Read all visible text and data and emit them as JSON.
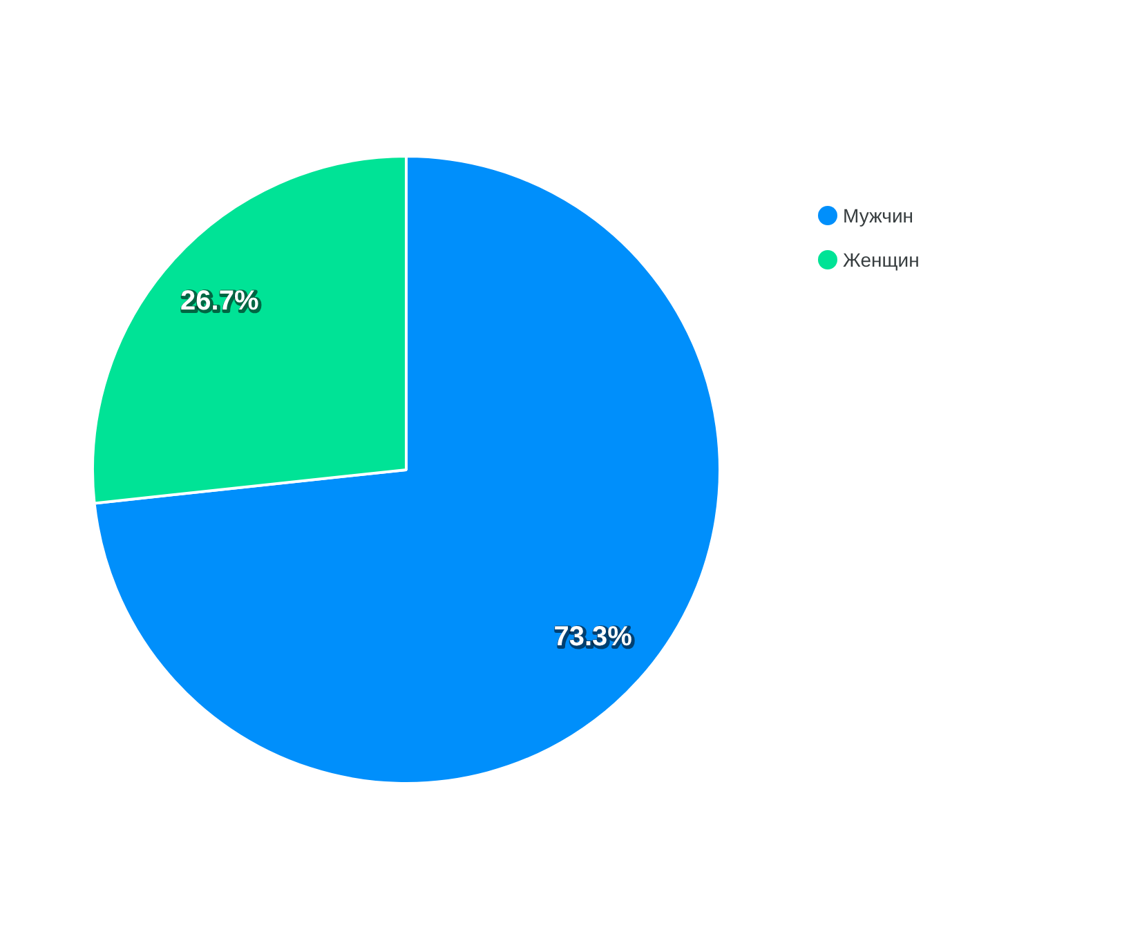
{
  "chart_data": {
    "type": "pie",
    "categories": [
      "Мужчин",
      "Женщин"
    ],
    "values": [
      73.3,
      26.7
    ],
    "colors": [
      "#008ffb",
      "#00e396"
    ],
    "legend": "top right",
    "value_labels": [
      "73.3%",
      "26.7%"
    ]
  }
}
